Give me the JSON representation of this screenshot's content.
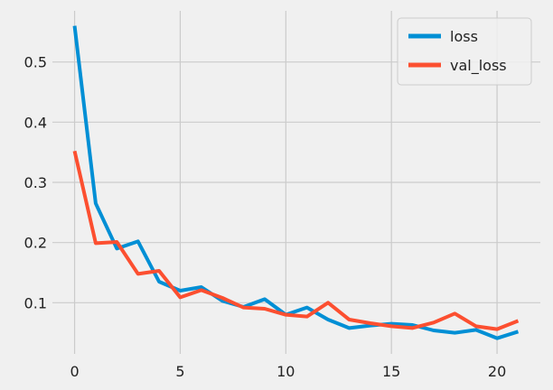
{
  "chart_data": {
    "type": "line",
    "x": [
      0,
      1,
      2,
      3,
      4,
      5,
      6,
      7,
      8,
      9,
      10,
      11,
      12,
      13,
      14,
      15,
      16,
      17,
      18,
      19,
      20,
      21
    ],
    "series": [
      {
        "name": "loss",
        "color": "#008fd5",
        "values": [
          0.56,
          0.265,
          0.19,
          0.202,
          0.135,
          0.12,
          0.126,
          0.103,
          0.093,
          0.106,
          0.08,
          0.092,
          0.072,
          0.058,
          0.062,
          0.065,
          0.063,
          0.054,
          0.05,
          0.055,
          0.041,
          0.052
        ]
      },
      {
        "name": "val_loss",
        "color": "#fc4f30",
        "values": [
          0.352,
          0.199,
          0.201,
          0.148,
          0.153,
          0.109,
          0.121,
          0.108,
          0.092,
          0.09,
          0.08,
          0.077,
          0.1,
          0.072,
          0.066,
          0.061,
          0.058,
          0.067,
          0.082,
          0.061,
          0.056,
          0.07
        ]
      }
    ],
    "xlim": [
      -1.05,
      22.05
    ],
    "ylim": [
      0.015,
      0.585
    ],
    "x_ticks": [
      0,
      5,
      10,
      15,
      20
    ],
    "y_ticks": [
      0.1,
      0.2,
      0.3,
      0.4,
      0.5
    ],
    "x_tick_labels": [
      "0",
      "5",
      "10",
      "15",
      "20"
    ],
    "y_tick_labels": [
      "0.1",
      "0.2",
      "0.3",
      "0.4",
      "0.5"
    ],
    "grid": true,
    "legend_position": "top-right",
    "title": "",
    "xlabel": "",
    "ylabel": ""
  }
}
